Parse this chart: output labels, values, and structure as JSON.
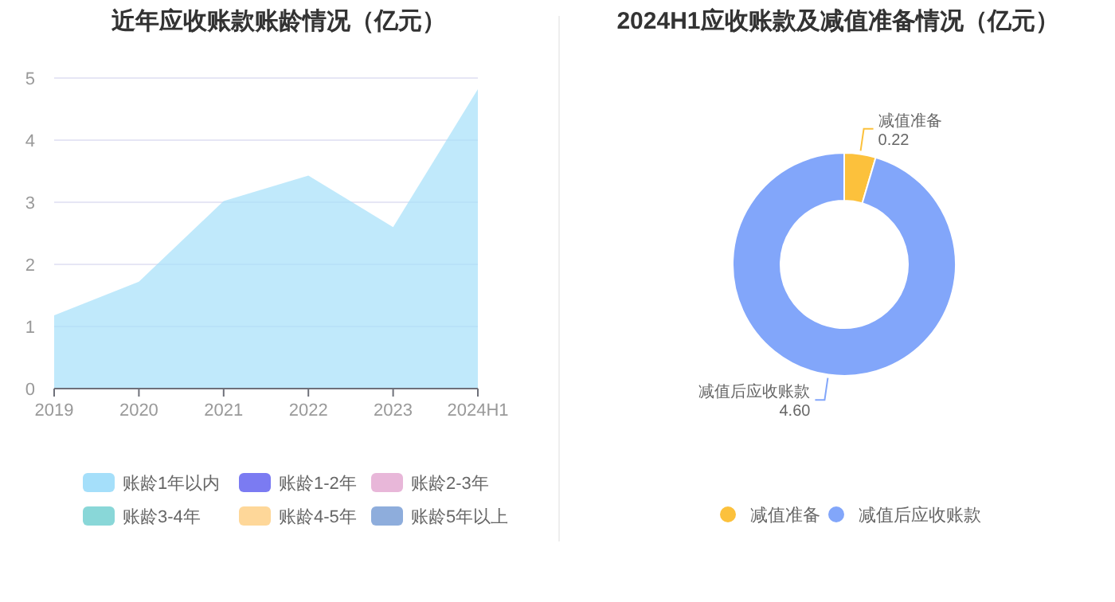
{
  "chart_data": [
    {
      "type": "area",
      "title": "近年应收账款账龄情况（亿元）",
      "categories": [
        "2019",
        "2020",
        "2021",
        "2022",
        "2023",
        "2024H1"
      ],
      "ylim": [
        0,
        5
      ],
      "yticks": [
        0,
        1,
        2,
        3,
        4,
        5
      ],
      "grid": "y",
      "legend": "bottom",
      "series": [
        {
          "name": "账龄1年以内",
          "color": "#a5dffa",
          "values": [
            1.18,
            1.72,
            3.02,
            3.43,
            2.6,
            4.82
          ]
        },
        {
          "name": "账龄1-2年",
          "color": "#7b7bf2",
          "values": [
            null,
            null,
            null,
            null,
            null,
            null
          ]
        },
        {
          "name": "账龄2-3年",
          "color": "#e8b7d9",
          "values": [
            null,
            null,
            null,
            null,
            null,
            null
          ]
        },
        {
          "name": "账龄3-4年",
          "color": "#89d7d8",
          "values": [
            null,
            null,
            null,
            null,
            null,
            null
          ]
        },
        {
          "name": "账龄4-5年",
          "color": "#fed799",
          "values": [
            null,
            null,
            null,
            null,
            null,
            null
          ]
        },
        {
          "name": "账龄5年以上",
          "color": "#8eaddc",
          "values": [
            null,
            null,
            null,
            null,
            null,
            null
          ]
        }
      ]
    },
    {
      "type": "donut",
      "title": "2024H1应收账款及减值准备情况（亿元）",
      "categories": [
        "减值准备",
        "减值后应收账款"
      ],
      "values": [
        0.22,
        4.6
      ],
      "value_labels": [
        "0.22",
        "4.60"
      ],
      "colors": [
        "#fcc13c",
        "#82a6fa"
      ],
      "legend": "bottom"
    }
  ]
}
